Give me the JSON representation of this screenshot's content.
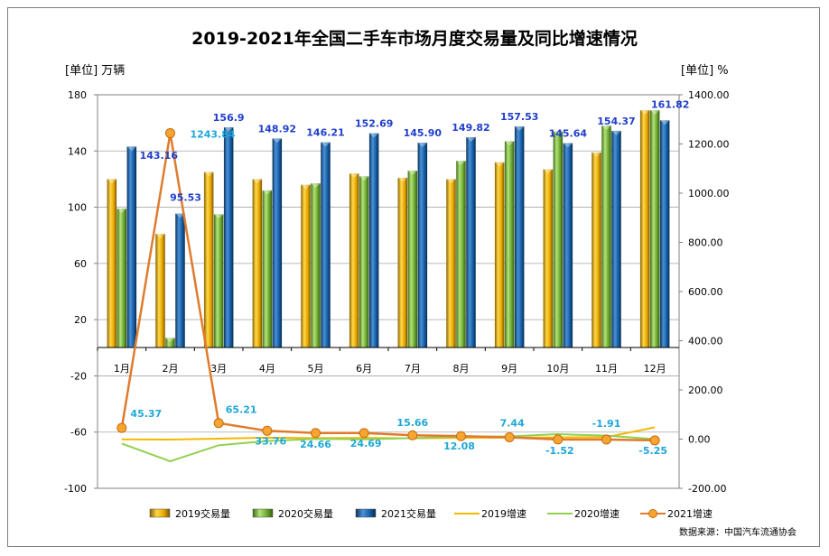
{
  "chart_data": {
    "type": "bar",
    "title": "2019-2021年全国二手车市场月度交易量及同比增速情况",
    "left_unit": "[单位] 万辆",
    "right_unit": "[单位] %",
    "source_note": "数据来源：中国汽车流通协会",
    "categories": [
      "1月",
      "2月",
      "3月",
      "4月",
      "5月",
      "6月",
      "7月",
      "8月",
      "9月",
      "10月",
      "11月",
      "12月"
    ],
    "y_left": {
      "min": -100,
      "max": 180,
      "ticks": [
        180,
        140,
        100,
        60,
        20,
        -20,
        -60,
        -100
      ]
    },
    "y_right": {
      "min": -200,
      "max": 1400,
      "ticks": [
        "1400.00",
        "1200.00",
        "1000.00",
        "800.00",
        "600.00",
        "400.00",
        "200.00",
        "0.00",
        "-200.00"
      ]
    },
    "bar_series": [
      {
        "name": "2019交易量",
        "color": "#e8b10c",
        "values": [
          120,
          81,
          125,
          120,
          116,
          124,
          121,
          120,
          132,
          127,
          139,
          169
        ]
      },
      {
        "name": "2020交易量",
        "color": "#7bbf3b",
        "values": [
          99,
          7,
          95,
          112,
          117,
          122,
          126,
          133,
          147,
          154,
          158,
          169
        ]
      },
      {
        "name": "2021交易量",
        "color": "#1a66b0",
        "values": [
          143.16,
          95.53,
          156.9,
          148.92,
          146.21,
          152.69,
          145.9,
          149.82,
          157.53,
          145.64,
          154.37,
          161.82
        ]
      }
    ],
    "bar_labels_2021": [
      "143.16",
      "95.53",
      "156.9",
      "148.92",
      "146.21",
      "152.69",
      "145.90",
      "149.82",
      "157.53",
      "145.64",
      "154.37",
      "161.82"
    ],
    "line_series": [
      {
        "name": "2019增速",
        "color": "#f5b800",
        "values": [
          -1,
          -2,
          2,
          6,
          4,
          5,
          3,
          5,
          6,
          7,
          8,
          48
        ]
      },
      {
        "name": "2020增速",
        "color": "#92d050",
        "values": [
          -18,
          -90,
          -25,
          -8,
          1,
          -1,
          4,
          10,
          11,
          20,
          14,
          0
        ]
      },
      {
        "name": "2021增速",
        "color": "#e07b2c",
        "values": [
          45.37,
          1243.84,
          65.21,
          33.76,
          24.66,
          24.69,
          15.66,
          12.08,
          7.44,
          -1.52,
          -1.91,
          -5.25
        ]
      }
    ],
    "line_labels_2021": [
      "45.37",
      "1243.84",
      "65.21",
      "33.76",
      "24.66",
      "24.69",
      "15.66",
      "12.08",
      "7.44",
      "-1.52",
      "-1.91",
      "-5.25"
    ]
  }
}
